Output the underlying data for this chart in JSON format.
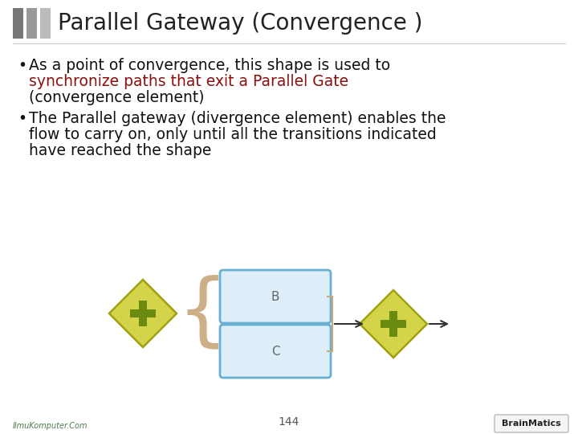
{
  "title": "Parallel Gateway (Convergence )",
  "title_fontsize": 20,
  "title_color": "#222222",
  "bar_colors_header": [
    "#777777",
    "#999999",
    "#bbbbbb"
  ],
  "bullet1_black": "As a point of convergence, this shape is used to",
  "bullet1_red": "synchronize paths that exit a Parallel Gate",
  "bullet1_cont": "(convergence element)",
  "bullet2_line1": "The Parallel gateway (divergence element) enables the",
  "bullet2_line2": "flow to carry on, only until all the transitions indicated",
  "bullet2_line3": "have reached the shape",
  "red_color": "#8B1010",
  "text_color": "#111111",
  "body_fontsize": 13.5,
  "bg_color": "#ffffff",
  "footer_text": "144",
  "footer_left": "IlmuKomputer.Com",
  "footer_right": "BrainMatics",
  "diagram_diamond_fill": "#d4d44a",
  "diagram_diamond_border": "#a0a010",
  "diagram_diamond_plus": "#6a8a10",
  "diagram_box_fill": "#ddeef8",
  "diagram_box_border": "#6ab0d0",
  "diagram_brace_color": "#c8a87a",
  "diagram_line_color": "#888888",
  "arrow_color": "#333333"
}
